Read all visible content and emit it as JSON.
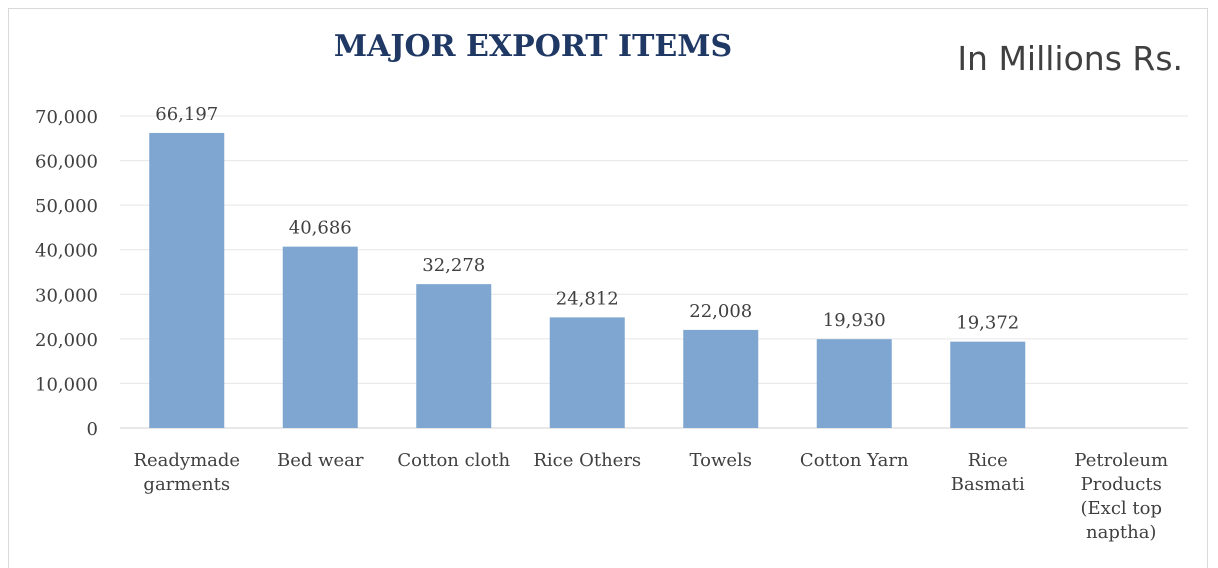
{
  "chart_data": {
    "type": "bar",
    "title": "MAJOR EXPORT ITEMS",
    "unit_label": "In Millions Rs.",
    "categories": [
      [
        "Readymade",
        "garments"
      ],
      [
        "Bed wear"
      ],
      [
        "Cotton cloth"
      ],
      [
        "Rice Others"
      ],
      [
        "Towels"
      ],
      [
        "Cotton Yarn"
      ],
      [
        "Rice",
        "Basmati"
      ],
      [
        "Petroleum",
        "Products",
        "(Excl top",
        "naptha)"
      ]
    ],
    "values": [
      66197,
      40686,
      32278,
      24812,
      22008,
      19930,
      19372,
      null
    ],
    "data_labels": [
      "66,197",
      "40,686",
      "32,278",
      "24,812",
      "22,008",
      "19,930",
      "19,372",
      ""
    ],
    "y_ticks": [
      "0",
      "10,000",
      "20,000",
      "30,000",
      "40,000",
      "50,000",
      "60,000",
      "70,000"
    ],
    "ylim": [
      0,
      70000
    ],
    "grid": true,
    "legend": "none",
    "bar_color": "#7ea6d0"
  }
}
